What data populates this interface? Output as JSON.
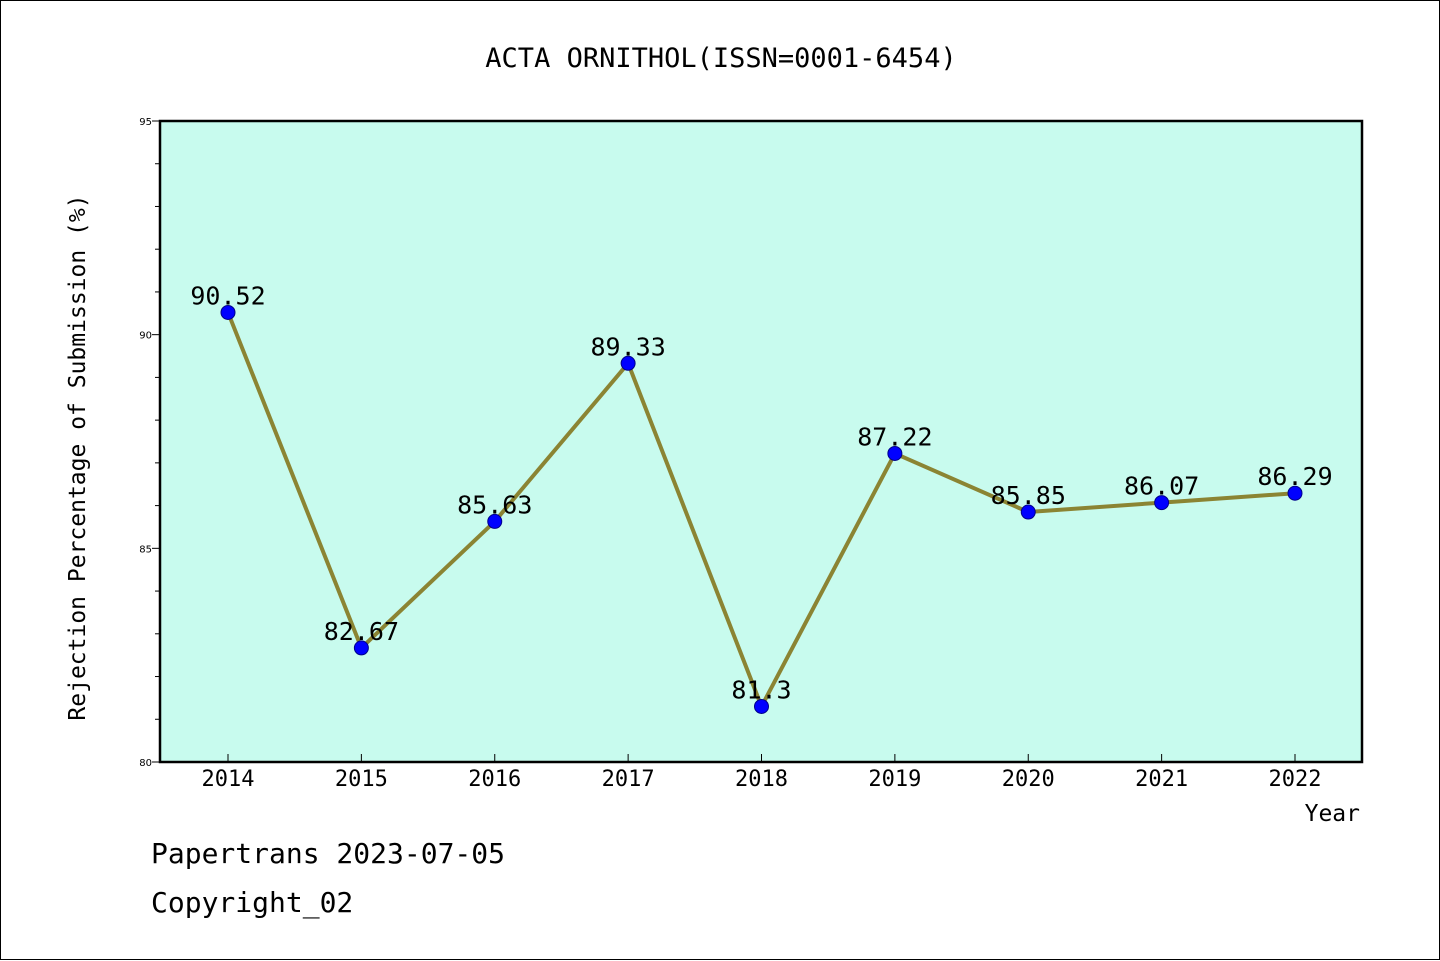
{
  "colors": {
    "plot_background": "#c8fbee",
    "line": "#8b8433",
    "marker_fill": "#0000ff",
    "marker_stroke": "#00008b",
    "axis": "#000000"
  },
  "chart_data": {
    "type": "line",
    "title": "ACTA ORNITHOL(ISSN=0001-6454)",
    "xlabel": "Year",
    "ylabel": "Rejection Percentage of Submission (%)",
    "categories": [
      "2014",
      "2015",
      "2016",
      "2017",
      "2018",
      "2019",
      "2020",
      "2021",
      "2022"
    ],
    "series": [
      {
        "values": [
          90.52,
          82.67,
          85.63,
          89.33,
          81.3,
          87.22,
          85.85,
          86.07,
          86.29
        ],
        "data_labels": [
          "90.52",
          "82.67",
          "85.63",
          "89.33",
          "81.3",
          "87.22",
          "85.85",
          "86.07",
          "86.29"
        ]
      }
    ],
    "ylim": [
      80,
      95
    ],
    "y_major_ticks": [
      "80",
      "85",
      "90",
      "95"
    ],
    "y_minor_step": 1,
    "grid": false,
    "legend": "none",
    "marker": "circle"
  },
  "footer": {
    "date_line": "Papertrans 2023-07-05",
    "copyright_line": "Copyright_02"
  }
}
